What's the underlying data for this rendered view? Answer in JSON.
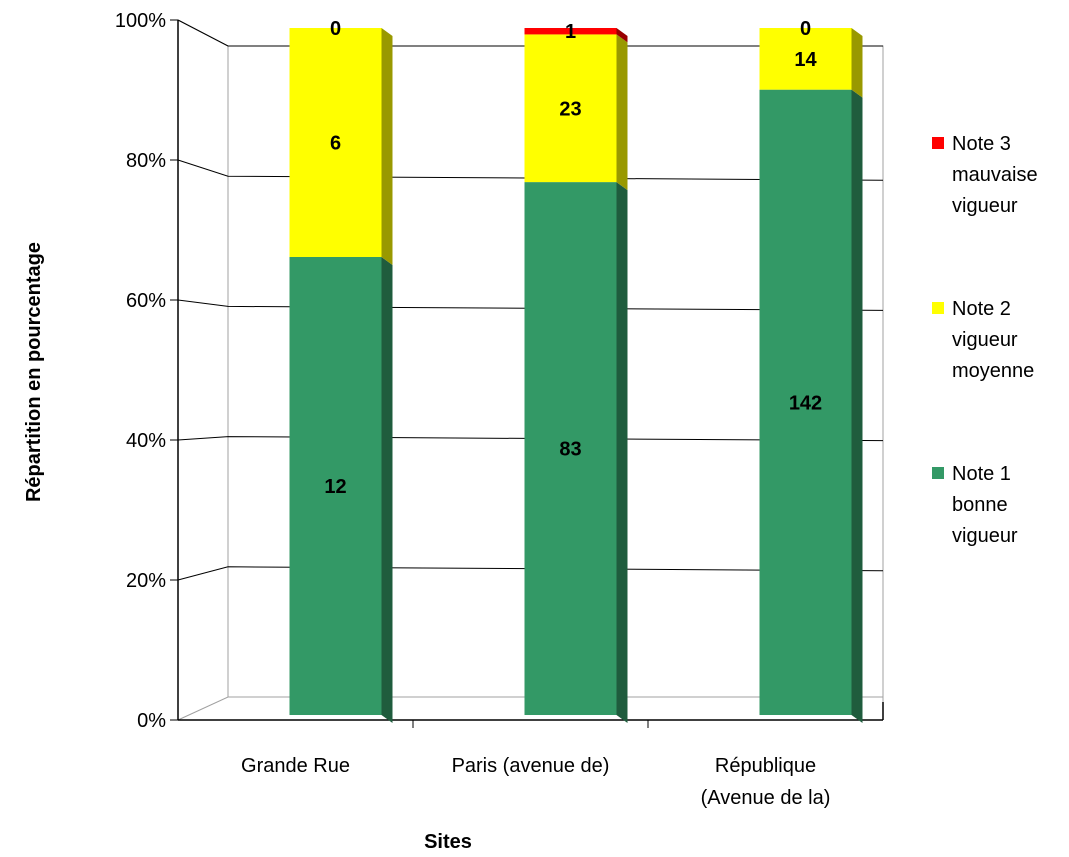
{
  "chart_data": {
    "type": "bar",
    "stacked": "percent",
    "three_d": true,
    "xlabel": "Sites",
    "ylabel": "Répartition en pourcentage",
    "ylim": [
      0,
      100
    ],
    "y_ticks": [
      "0%",
      "20%",
      "40%",
      "60%",
      "80%",
      "100%"
    ],
    "grid": true,
    "legend_position": "right",
    "categories": [
      [
        "Grande Rue"
      ],
      [
        "Paris (avenue de)"
      ],
      [
        "République",
        "(Avenue de la)"
      ]
    ],
    "series": [
      {
        "name": [
          "Note 1",
          "bonne",
          "vigueur"
        ],
        "color": "#339966",
        "side_color": "#1f5c3d",
        "label_color": "#ffffff",
        "values": [
          12,
          83,
          142
        ]
      },
      {
        "name": [
          "Note 2",
          "vigueur",
          "moyenne"
        ],
        "color": "#ffff00",
        "side_color": "#999900",
        "label_color": "#000000",
        "values": [
          6,
          23,
          14
        ]
      },
      {
        "name": [
          "Note 3",
          "mauvaise",
          "vigueur"
        ],
        "color": "#ff0000",
        "side_color": "#990000",
        "label_color": "#000000",
        "values": [
          0,
          1,
          0
        ]
      }
    ]
  }
}
